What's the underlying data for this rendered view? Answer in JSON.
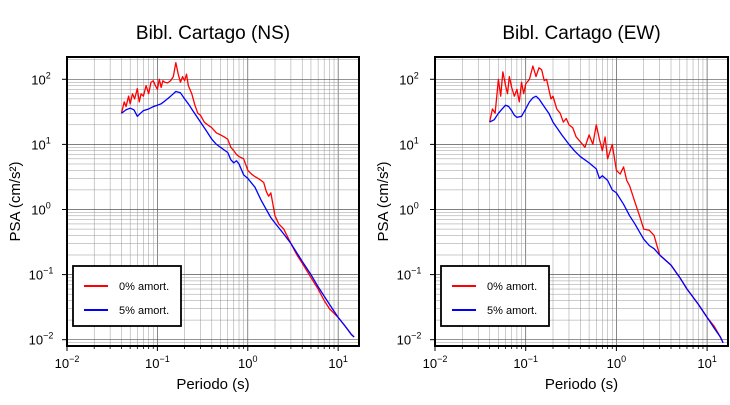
{
  "chart_data": [
    {
      "type": "line",
      "title": "Bibl. Cartago (NS)",
      "xlabel": "Periodo (s)",
      "ylabel": "PSA (cm/s²)",
      "xscale": "log",
      "yscale": "log",
      "xlim": [
        0.01,
        17
      ],
      "ylim": [
        0.008,
        220
      ],
      "grid": true,
      "legend_position": "bottom-left",
      "x_ticks": [
        {
          "base": "10",
          "exp": "−2"
        },
        {
          "base": "10",
          "exp": "−1"
        },
        {
          "base": "10",
          "exp": "0"
        },
        {
          "base": "10",
          "exp": "1"
        }
      ],
      "y_ticks": [
        {
          "base": "10",
          "exp": "2"
        },
        {
          "base": "10",
          "exp": "1"
        },
        {
          "base": "10",
          "exp": "0"
        },
        {
          "base": "10",
          "exp": "−1"
        },
        {
          "base": "10",
          "exp": "−2"
        }
      ],
      "series": [
        {
          "name": "0% amort.",
          "color": "#ff0000",
          "x": [
            0.04,
            0.043,
            0.045,
            0.048,
            0.05,
            0.053,
            0.056,
            0.06,
            0.063,
            0.066,
            0.07,
            0.075,
            0.08,
            0.085,
            0.09,
            0.095,
            0.1,
            0.105,
            0.11,
            0.115,
            0.12,
            0.13,
            0.14,
            0.15,
            0.16,
            0.17,
            0.18,
            0.19,
            0.2,
            0.21,
            0.22,
            0.24,
            0.26,
            0.28,
            0.3,
            0.33,
            0.36,
            0.4,
            0.45,
            0.5,
            0.55,
            0.6,
            0.65,
            0.7,
            0.75,
            0.8,
            0.9,
            1.0,
            1.1,
            1.2,
            1.3,
            1.4,
            1.5,
            1.6,
            1.7,
            1.8,
            2.0,
            2.2,
            2.5,
            3.0,
            3.5,
            4.0,
            5.0,
            6.0,
            7.0,
            8.0,
            10.0,
            12.0,
            14.0,
            15.0
          ],
          "y": [
            30,
            45,
            38,
            55,
            42,
            60,
            50,
            72,
            45,
            60,
            55,
            80,
            60,
            90,
            95,
            80,
            70,
            100,
            75,
            95,
            90,
            88,
            95,
            110,
            180,
            120,
            90,
            110,
            95,
            120,
            80,
            60,
            40,
            30,
            28,
            22,
            20,
            18,
            15,
            14,
            13,
            12,
            9,
            8,
            7,
            6.5,
            6,
            4,
            3.5,
            3.2,
            3,
            2.8,
            2.6,
            1.9,
            1.6,
            1.8,
            0.8,
            0.6,
            0.5,
            0.3,
            0.2,
            0.15,
            0.09,
            0.06,
            0.04,
            0.03,
            0.022,
            0.016,
            0.012,
            0.011
          ]
        },
        {
          "name": "5% amort.",
          "color": "#0000ff",
          "x": [
            0.04,
            0.045,
            0.05,
            0.055,
            0.06,
            0.065,
            0.07,
            0.08,
            0.09,
            0.1,
            0.11,
            0.12,
            0.14,
            0.16,
            0.18,
            0.2,
            0.22,
            0.25,
            0.3,
            0.35,
            0.4,
            0.45,
            0.5,
            0.6,
            0.65,
            0.7,
            0.75,
            0.8,
            0.9,
            1.0,
            1.2,
            1.4,
            1.6,
            1.8,
            2.0,
            2.5,
            3.0,
            4.0,
            5.0,
            6.0,
            8.0,
            10.0,
            12.0,
            14.0,
            15.0
          ],
          "y": [
            30,
            34,
            36,
            34,
            27,
            30,
            33,
            35,
            38,
            40,
            42,
            46,
            55,
            65,
            62,
            50,
            42,
            32,
            22,
            16,
            12,
            10,
            9,
            7.5,
            5.8,
            5.2,
            5.6,
            5.0,
            3.4,
            3.0,
            2.2,
            1.4,
            1.0,
            0.75,
            0.62,
            0.42,
            0.3,
            0.16,
            0.1,
            0.065,
            0.035,
            0.022,
            0.016,
            0.012,
            0.011
          ]
        }
      ]
    },
    {
      "type": "line",
      "title": "Bibl. Cartago (EW)",
      "xlabel": "Periodo (s)",
      "ylabel": "PSA (cm/s²)",
      "xscale": "log",
      "yscale": "log",
      "xlim": [
        0.01,
        17
      ],
      "ylim": [
        0.008,
        220
      ],
      "grid": true,
      "legend_position": "bottom-left",
      "x_ticks": [
        {
          "base": "10",
          "exp": "−2"
        },
        {
          "base": "10",
          "exp": "−1"
        },
        {
          "base": "10",
          "exp": "0"
        },
        {
          "base": "10",
          "exp": "1"
        }
      ],
      "y_ticks": [
        {
          "base": "10",
          "exp": "2"
        },
        {
          "base": "10",
          "exp": "1"
        },
        {
          "base": "10",
          "exp": "0"
        },
        {
          "base": "10",
          "exp": "−1"
        },
        {
          "base": "10",
          "exp": "−2"
        }
      ],
      "series": [
        {
          "name": "0% amort.",
          "color": "#ff0000",
          "x": [
            0.04,
            0.043,
            0.046,
            0.05,
            0.053,
            0.056,
            0.06,
            0.063,
            0.066,
            0.07,
            0.075,
            0.08,
            0.085,
            0.09,
            0.095,
            0.1,
            0.11,
            0.12,
            0.13,
            0.14,
            0.15,
            0.16,
            0.17,
            0.18,
            0.19,
            0.2,
            0.22,
            0.24,
            0.26,
            0.28,
            0.3,
            0.33,
            0.36,
            0.4,
            0.45,
            0.5,
            0.55,
            0.6,
            0.65,
            0.7,
            0.75,
            0.8,
            0.9,
            1.0,
            1.1,
            1.2,
            1.3,
            1.4,
            1.6,
            1.8,
            2.0,
            2.3,
            2.6,
            3.0,
            4.0,
            5.0,
            6.0,
            8.0,
            10.0,
            12.0,
            14.0,
            15.0
          ],
          "y": [
            22,
            35,
            30,
            100,
            55,
            130,
            80,
            60,
            110,
            75,
            55,
            70,
            45,
            90,
            60,
            85,
            100,
            160,
            110,
            150,
            140,
            95,
            100,
            70,
            50,
            55,
            35,
            30,
            22,
            25,
            20,
            18,
            13,
            11,
            9,
            14,
            10,
            20,
            12,
            8,
            13,
            6,
            10,
            4,
            3.5,
            4.5,
            2.8,
            2.3,
            1.3,
            0.8,
            0.5,
            0.48,
            0.4,
            0.2,
            0.14,
            0.09,
            0.06,
            0.035,
            0.022,
            0.016,
            0.011,
            0.009
          ]
        },
        {
          "name": "5% amort.",
          "color": "#0000ff",
          "x": [
            0.04,
            0.045,
            0.05,
            0.055,
            0.06,
            0.065,
            0.07,
            0.075,
            0.08,
            0.09,
            0.1,
            0.11,
            0.12,
            0.13,
            0.14,
            0.16,
            0.18,
            0.2,
            0.25,
            0.3,
            0.35,
            0.4,
            0.5,
            0.6,
            0.65,
            0.7,
            0.8,
            0.9,
            1.0,
            1.2,
            1.4,
            1.6,
            1.8,
            2.0,
            2.3,
            2.6,
            3.0,
            4.0,
            5.0,
            6.0,
            8.0,
            10.0,
            12.0,
            14.0,
            15.0
          ],
          "y": [
            22,
            24,
            30,
            35,
            40,
            38,
            33,
            28,
            26,
            27,
            35,
            45,
            52,
            55,
            50,
            38,
            30,
            22,
            14,
            10,
            7.8,
            6.5,
            5.2,
            4.2,
            3.0,
            3.3,
            2.8,
            2.0,
            1.8,
            1.2,
            0.8,
            0.6,
            0.45,
            0.35,
            0.28,
            0.25,
            0.2,
            0.14,
            0.09,
            0.06,
            0.035,
            0.022,
            0.015,
            0.011,
            0.009
          ]
        }
      ]
    }
  ]
}
